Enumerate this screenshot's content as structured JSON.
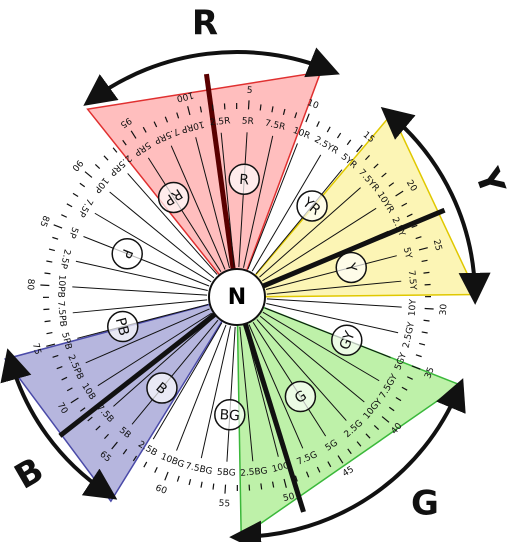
{
  "center_label": "N",
  "hue_groups": [
    {
      "label": "R",
      "color": "#ffb3b3",
      "edge": "#e03030"
    },
    {
      "label": "Y",
      "color": "#fbf3a8",
      "edge": "#e0c800"
    },
    {
      "label": "G",
      "color": "#b3ee9a",
      "edge": "#3bb83b"
    },
    {
      "label": "B",
      "color": "#a9a9d8",
      "edge": "#4a4aa8"
    }
  ],
  "principal_hues": [
    "R",
    "YR",
    "Y",
    "GY",
    "G",
    "BG",
    "B",
    "PB",
    "P",
    "RP"
  ],
  "hue_labels": [
    "2.5R",
    "5R",
    "7.5R",
    "10R",
    "2.5YR",
    "5YR",
    "7.5YR",
    "10YR",
    "2.5Y",
    "5Y",
    "7.5Y",
    "10Y",
    "2.5GY",
    "5GY",
    "7.5GY",
    "10GY",
    "2.5G",
    "5G",
    "7.5G",
    "10G",
    "2.5BG",
    "5BG",
    "7.5BG",
    "10BG",
    "2.5B",
    "5B",
    "7.5B",
    "10B",
    "2.5PB",
    "5PB",
    "7.5PB",
    "10PB",
    "2.5P",
    "5P",
    "7.5P",
    "10P",
    "2.5RP",
    "5RP",
    "7.5RP",
    "10RP"
  ],
  "hue_numbers": [
    "5",
    "10",
    "15",
    "20",
    "25",
    "30",
    "35",
    "40",
    "45",
    "50",
    "55",
    "60",
    "65",
    "70",
    "75",
    "80",
    "85",
    "90",
    "95",
    "100"
  ]
}
